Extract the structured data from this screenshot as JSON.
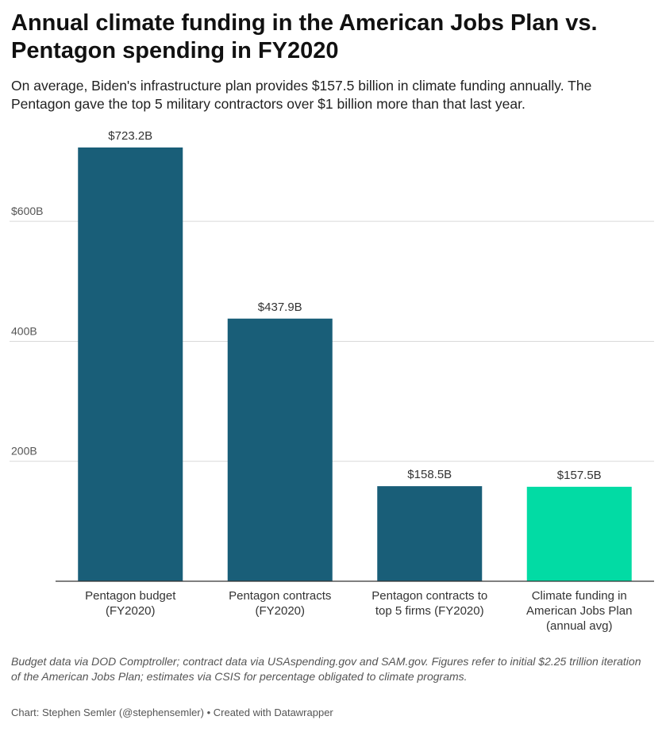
{
  "header": {
    "title": "Annual climate funding in the American Jobs Plan vs. Pentagon spending in FY2020",
    "subtitle": "On average, Biden's infrastructure plan provides $157.5 billion in climate funding annually. The Pentagon gave the top 5 military contractors over $1 billion more than that last year."
  },
  "chart_data": {
    "type": "bar",
    "title": "Annual climate funding in the American Jobs Plan vs. Pentagon spending in FY2020",
    "subtitle": "On average, Biden's infrastructure plan provides $157.5 billion in climate funding annually. The Pentagon gave the top 5 military contractors over $1 billion more than that last year.",
    "categories": [
      [
        "Pentagon budget",
        "(FY2020)"
      ],
      [
        "Pentagon contracts",
        "(FY2020)"
      ],
      [
        "Pentagon contracts to",
        "top 5 firms (FY2020)"
      ],
      [
        "Climate funding in",
        "American Jobs Plan",
        "(annual avg)"
      ]
    ],
    "values": [
      723.2,
      437.9,
      158.5,
      157.5
    ],
    "value_labels": [
      "$723.2B",
      "$437.9B",
      "$158.5B",
      "$157.5B"
    ],
    "colors": [
      "#195e78",
      "#195e78",
      "#195e78",
      "#02dba4"
    ],
    "yticks": [
      200,
      400,
      600
    ],
    "ytick_labels": [
      "200B",
      "400B",
      "$600B"
    ],
    "ylim": [
      0,
      723.2
    ],
    "grid": true,
    "xlabel": "",
    "ylabel": ""
  },
  "footer": {
    "notes": "Budget data via DOD Comptroller; contract data via USAspending.gov and SAM.gov. Figures refer to initial $2.25 trillion iteration of the American Jobs Plan; estimates via CSIS for percentage obligated to climate programs.",
    "credit": "Chart: Stephen Semler (@stephensemler) • Created with Datawrapper"
  }
}
